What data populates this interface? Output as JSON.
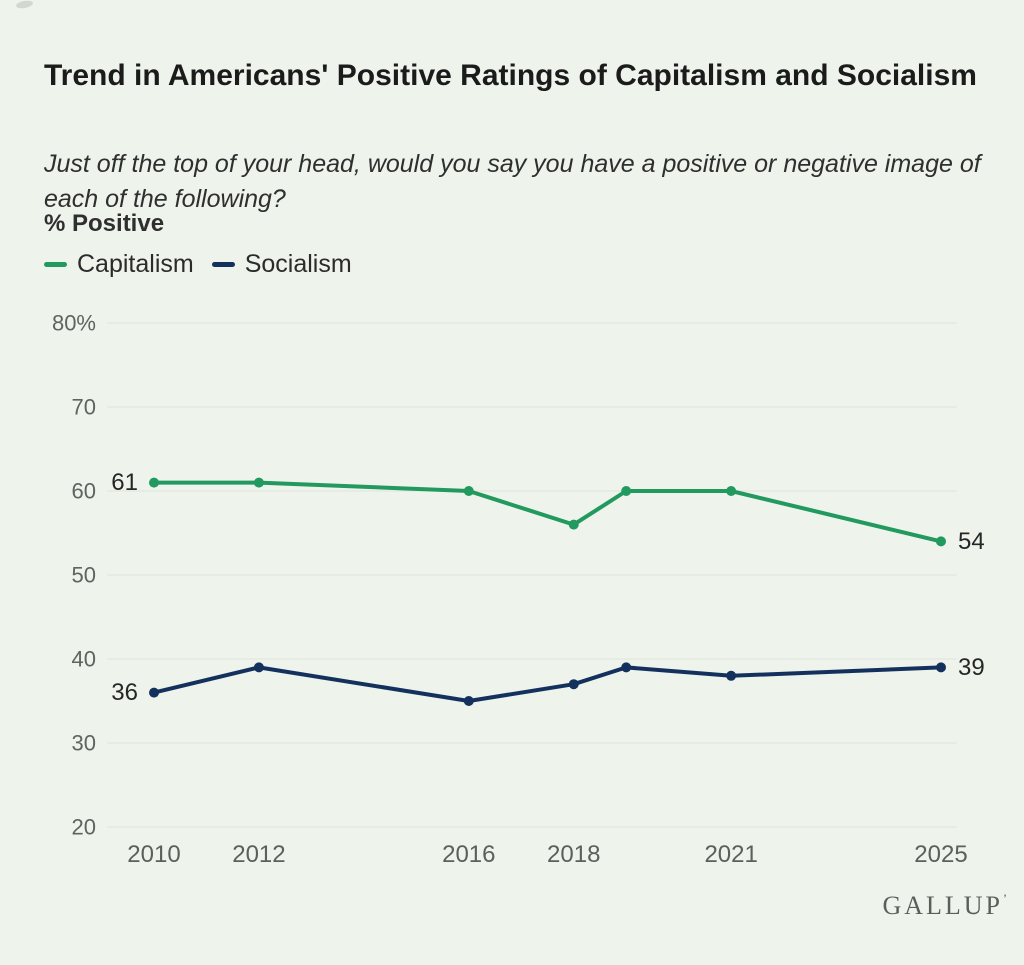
{
  "page": {
    "background": "#eef3ec",
    "title": "Trend in Americans' Positive Ratings of Capitalism and Socialism",
    "subtitle": "Just off the top of your head, would you say you have a positive or negative image of each of the following?",
    "metric_label": "% Positive",
    "brand": "GALLUP",
    "brand_mark": "’"
  },
  "legend": [
    {
      "label": "Capitalism",
      "color": "#22995e"
    },
    {
      "label": "Socialism",
      "color": "#14315e"
    }
  ],
  "chart_data": {
    "type": "line",
    "title": "Trend in Americans' Positive Ratings of Capitalism and Socialism",
    "xlabel": "",
    "ylabel": "% Positive",
    "ylim": [
      20,
      80
    ],
    "grid": true,
    "legend_position": "top-left",
    "x": [
      2010,
      2012,
      2016,
      2018,
      2019,
      2021,
      2025
    ],
    "series": [
      {
        "name": "Capitalism",
        "color": "#22995e",
        "values": [
          61,
          61,
          60,
          56,
          60,
          60,
          54
        ]
      },
      {
        "name": "Socialism",
        "color": "#14315e",
        "values": [
          36,
          39,
          35,
          37,
          39,
          38,
          39
        ]
      }
    ],
    "yticks": [
      {
        "value": 80,
        "label": "80%"
      },
      {
        "value": 70,
        "label": "70"
      },
      {
        "value": 60,
        "label": "60"
      },
      {
        "value": 50,
        "label": "50"
      },
      {
        "value": 40,
        "label": "40"
      },
      {
        "value": 30,
        "label": "30"
      },
      {
        "value": 20,
        "label": "20"
      }
    ],
    "xticks": [
      {
        "year": 2010,
        "label": "2010"
      },
      {
        "year": 2012,
        "label": "2012"
      },
      {
        "year": 2016,
        "label": "2016"
      },
      {
        "year": 2018,
        "label": "2018"
      },
      {
        "year": 2021,
        "label": "2021"
      },
      {
        "year": 2025,
        "label": "2025"
      }
    ],
    "point_labels": [
      {
        "series": 0,
        "year": 2010,
        "text": "61",
        "side": "left"
      },
      {
        "series": 1,
        "year": 2010,
        "text": "36",
        "side": "left"
      },
      {
        "series": 0,
        "year": 2025,
        "text": "54",
        "side": "right"
      },
      {
        "series": 1,
        "year": 2025,
        "text": "39",
        "side": "right"
      }
    ]
  }
}
